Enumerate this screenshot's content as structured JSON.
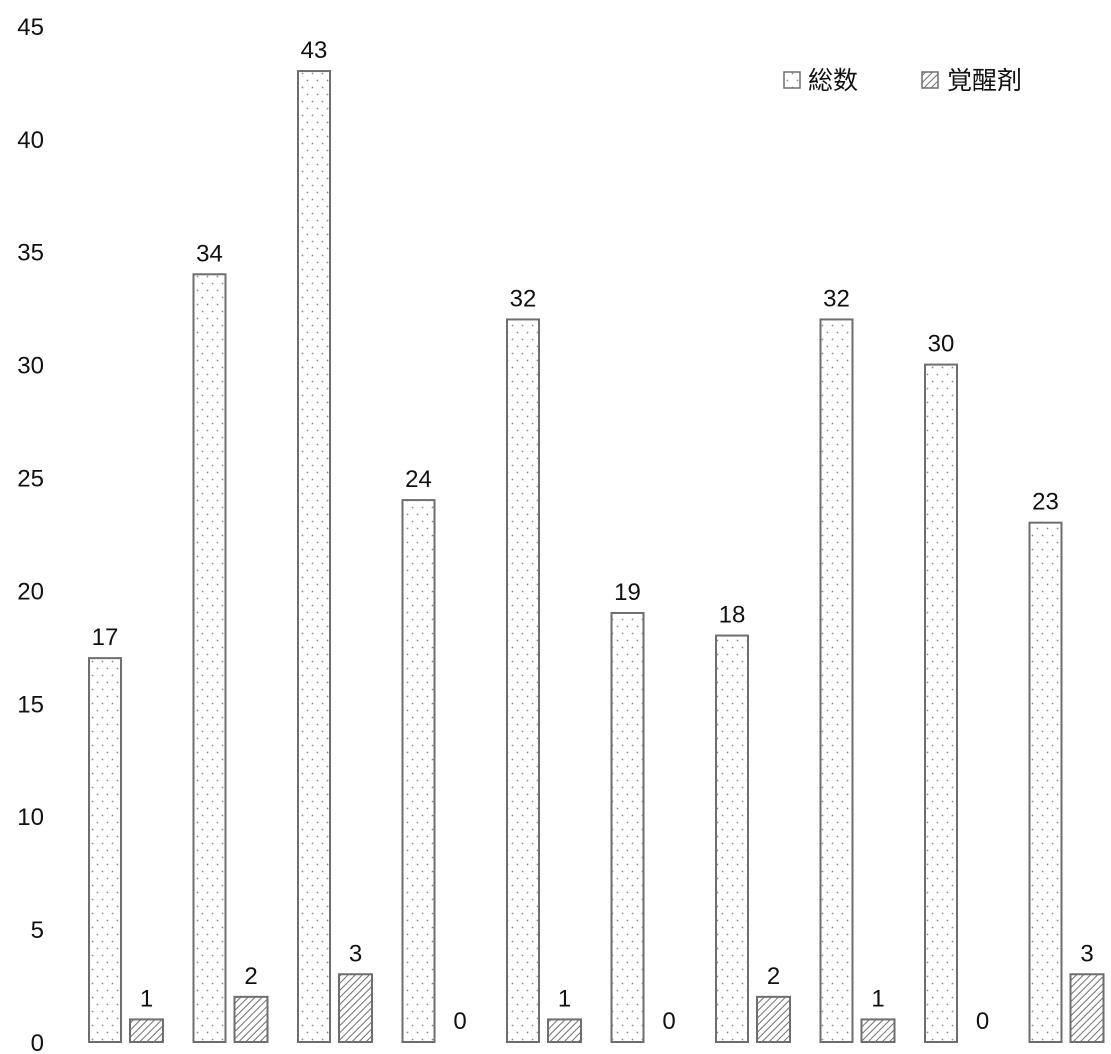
{
  "chart_data": {
    "type": "bar",
    "categories": [
      "",
      "",
      "",
      "",
      "",
      "",
      "",
      "",
      "",
      ""
    ],
    "series": [
      {
        "name": "総数",
        "values": [
          17,
          34,
          43,
          24,
          32,
          19,
          18,
          32,
          30,
          23
        ],
        "pattern": "dots"
      },
      {
        "name": "覚醒剤",
        "values": [
          1,
          2,
          3,
          0,
          1,
          0,
          2,
          1,
          0,
          3
        ],
        "pattern": "hatch"
      }
    ],
    "title": "",
    "xlabel": "",
    "ylabel": "",
    "ylim": [
      0,
      45
    ],
    "yticks": [
      0,
      5,
      10,
      15,
      20,
      25,
      30,
      35,
      40,
      45
    ],
    "grid": false,
    "legend": "top-right",
    "data_labels": true,
    "colors": {
      "bar_stroke": "#6e6e6e",
      "dot": "#8a8a8a",
      "hatch": "#707070",
      "text": "#111111"
    }
  }
}
